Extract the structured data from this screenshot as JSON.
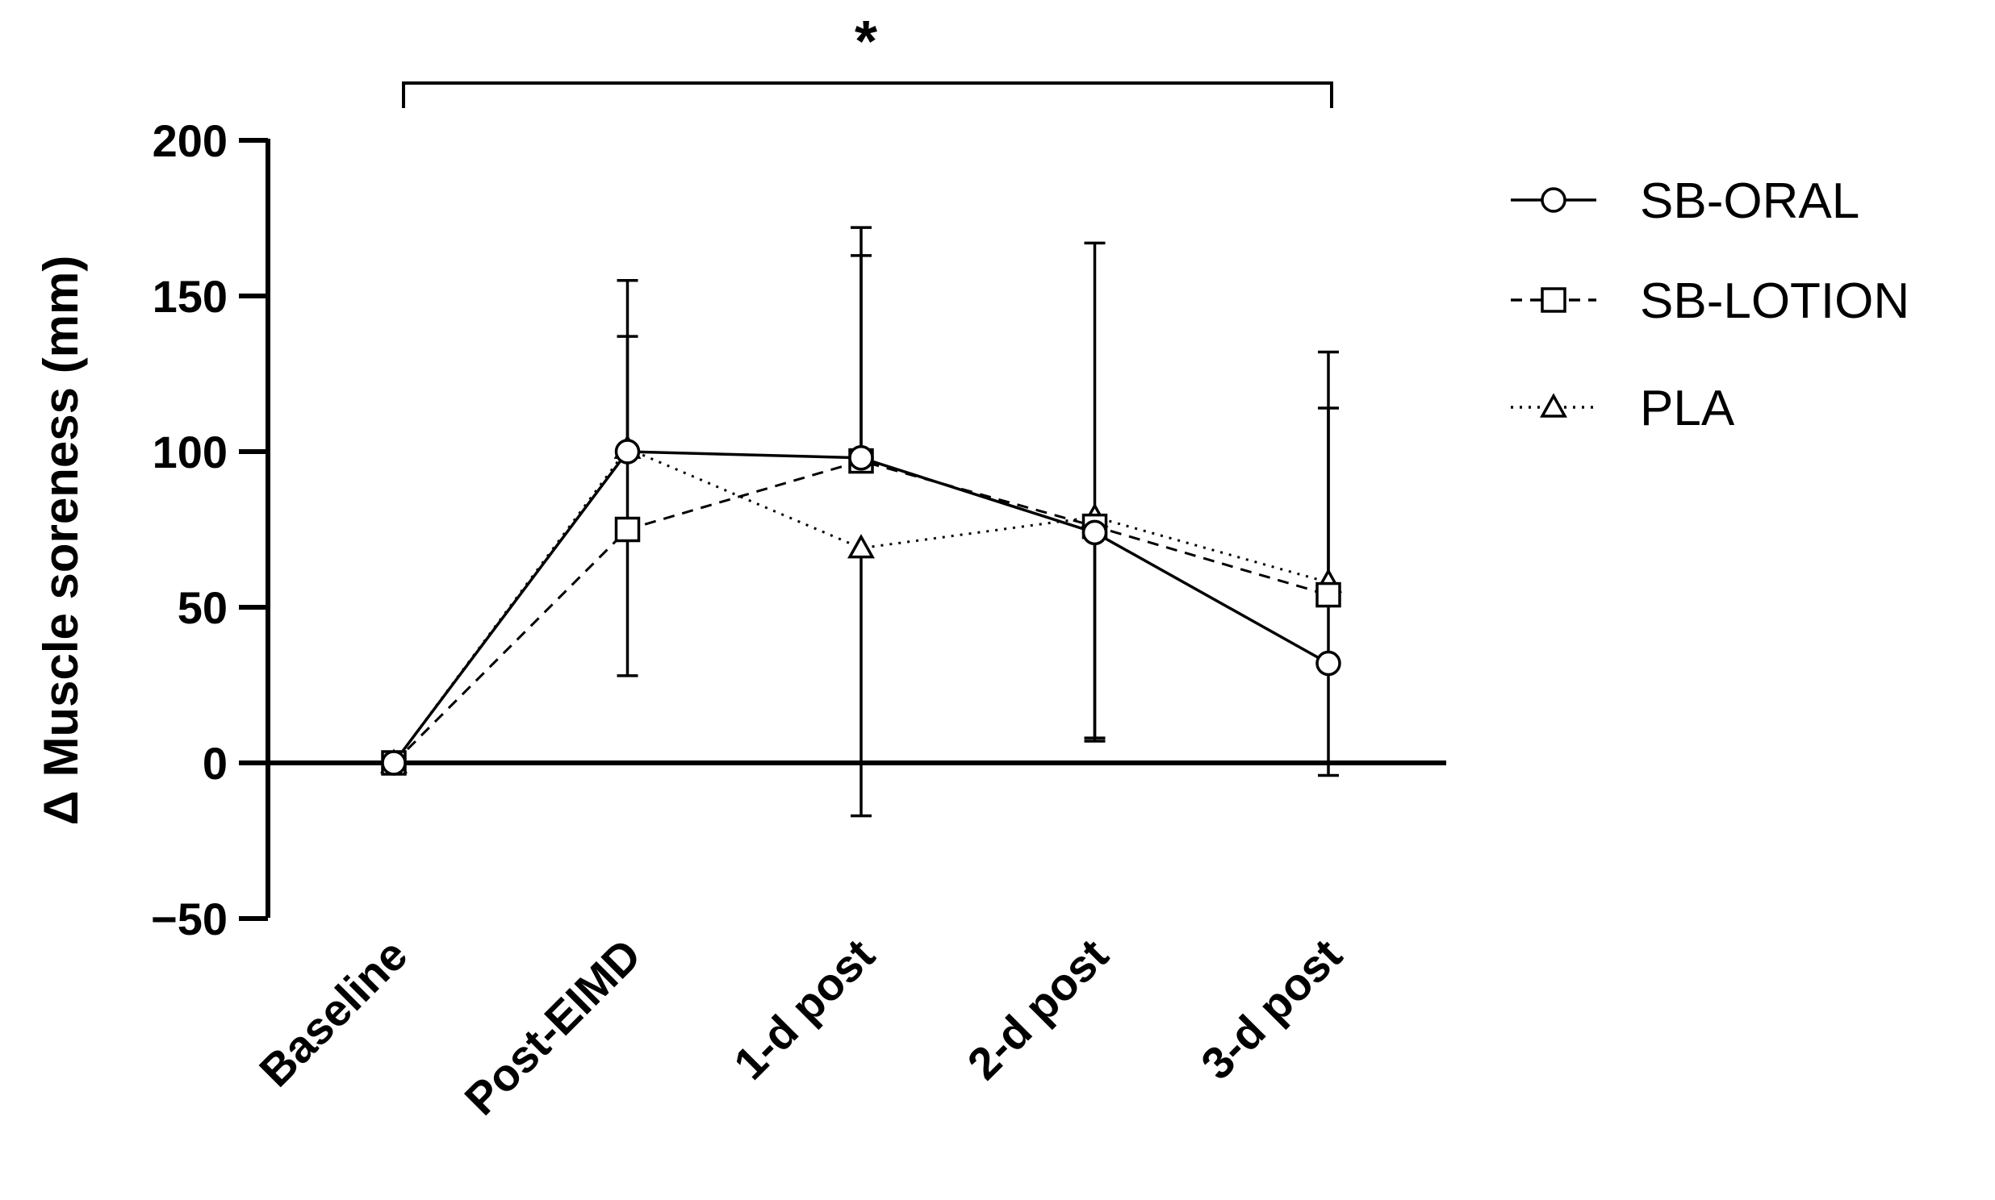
{
  "chart_data": {
    "type": "line",
    "ylabel": "Δ Muscle soreness (mm)",
    "xlabel": "",
    "categories": [
      "Baseline",
      "Post-EIMD",
      "1-d post",
      "2-d post",
      "3-d post"
    ],
    "ylim": [
      -50,
      200
    ],
    "yticks": [
      "200",
      "150",
      "100",
      "50",
      "0",
      "−50"
    ],
    "yticks_values": [
      200,
      150,
      100,
      50,
      0,
      -50
    ],
    "significance_marker": "*",
    "legend_position": "right",
    "series": [
      {
        "name": "SB-ORAL",
        "marker": "circle",
        "line_style": "solid",
        "values": [
          0,
          100,
          98,
          74,
          32
        ],
        "error_upper": [
          0,
          155,
          163,
          74,
          114
        ],
        "error_lower": [
          0,
          100,
          98,
          8,
          -4
        ]
      },
      {
        "name": "SB-LOTION",
        "marker": "square",
        "line_style": "dashed",
        "values": [
          0,
          75,
          97,
          76,
          54
        ],
        "error_upper": [
          0,
          137,
          172,
          76,
          132
        ],
        "error_lower": [
          0,
          28,
          97,
          7,
          54
        ]
      },
      {
        "name": "PLA",
        "marker": "triangle",
        "line_style": "dotted",
        "values": [
          0,
          101,
          69,
          79,
          58
        ],
        "error_upper": [
          0,
          101,
          69,
          167,
          58
        ],
        "error_lower": [
          0,
          101,
          -17,
          79,
          58
        ]
      }
    ]
  }
}
